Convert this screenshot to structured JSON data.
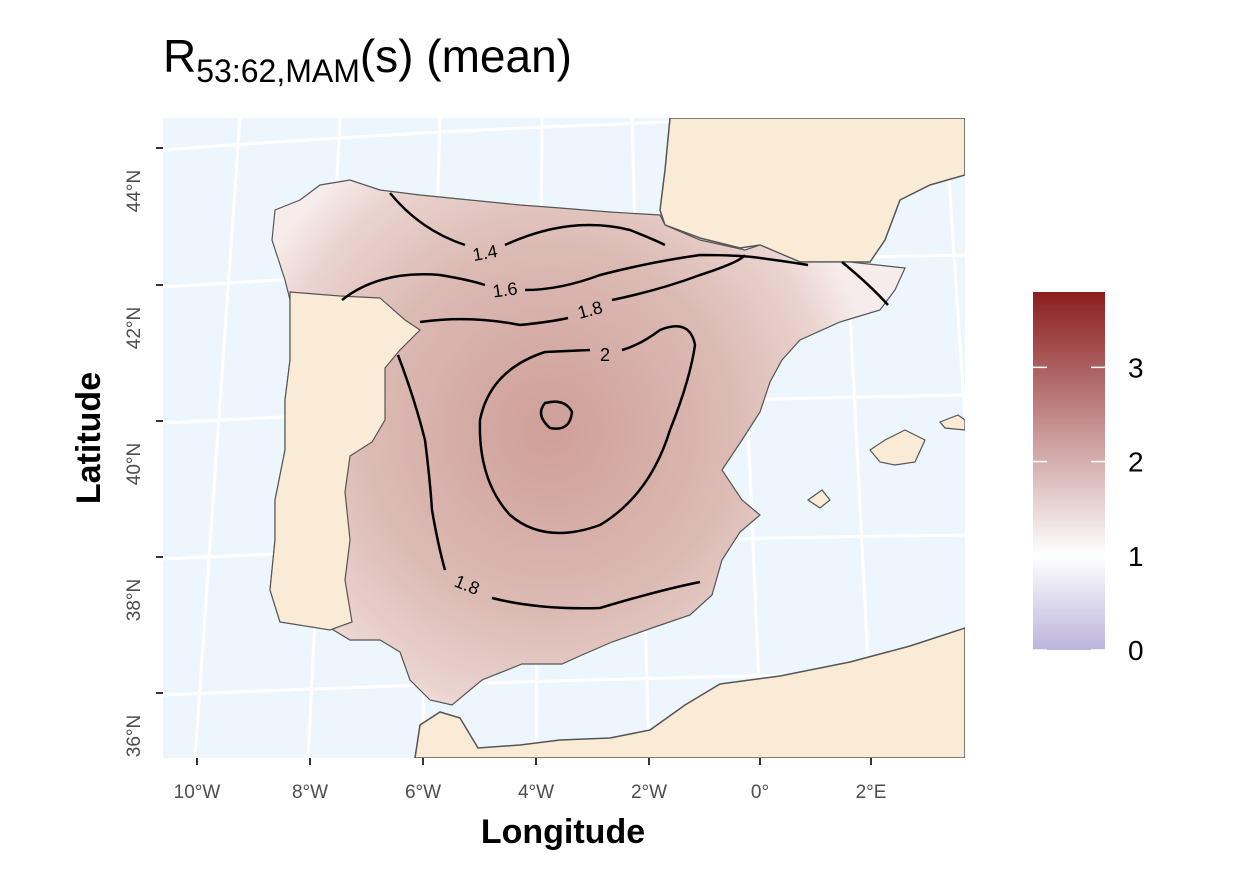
{
  "title": {
    "main": "R",
    "subscript": "53:62,MAM",
    "rest": "(s) (mean)"
  },
  "x_axis": {
    "label": "Longitude",
    "ticks": [
      "10°W",
      "8°W",
      "6°W",
      "4°W",
      "2°W",
      "0°",
      "2°E"
    ]
  },
  "y_axis": {
    "label": "Latitude",
    "ticks": [
      "36°N",
      "38°N",
      "40°N",
      "42°N",
      "44°N"
    ]
  },
  "contour_labels": [
    1.4,
    1.6,
    1.8,
    2,
    1.8
  ],
  "colorbar": {
    "lim": [
      0,
      3.8
    ],
    "ticks": [
      0,
      1,
      2,
      3
    ],
    "colors": [
      "#bcb4dc",
      "#ffffff",
      "#8b1e1e"
    ],
    "color_values": [
      0,
      1,
      3.8
    ]
  }
}
